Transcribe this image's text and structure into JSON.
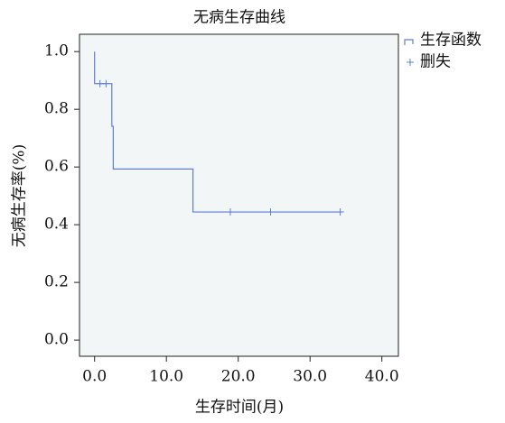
{
  "chart_data": {
    "type": "line",
    "step": "post",
    "title": "无病生存曲线",
    "x_label": "生存时间(月)",
    "y_label": "无病生存率(%)",
    "xlim": [
      -2.1,
      42.3
    ],
    "ylim": [
      -0.056,
      1.06
    ],
    "xticks": [
      {
        "value": 0,
        "label": "0.0"
      },
      {
        "value": 10,
        "label": "10.0"
      },
      {
        "value": 20,
        "label": "20.0"
      },
      {
        "value": 30,
        "label": "30.0"
      },
      {
        "value": 40,
        "label": "40.0"
      }
    ],
    "yticks": [
      {
        "value": 0,
        "label": "0.0"
      },
      {
        "value": 0.2,
        "label": "0.2"
      },
      {
        "value": 0.4,
        "label": "0.4"
      },
      {
        "value": 0.6,
        "label": "0.6"
      },
      {
        "value": 0.8,
        "label": "0.8"
      },
      {
        "value": 1,
        "label": "1.0"
      }
    ],
    "grid": false,
    "legend": "right",
    "series": [
      {
        "name": "生存函数",
        "color": "#5b7fd6",
        "x": [
          0,
          0,
          2.4,
          2.6,
          13.7,
          34.3
        ],
        "y": [
          1.0,
          0.889,
          0.741,
          0.593,
          0.444,
          0.444
        ]
      },
      {
        "name": "删失",
        "color": "#5b7fd6",
        "marker": "plus",
        "x": [
          0.75,
          1.6,
          18.9,
          24.5,
          34.2
        ],
        "y": [
          0.889,
          0.889,
          0.444,
          0.444,
          0.444
        ]
      }
    ]
  }
}
